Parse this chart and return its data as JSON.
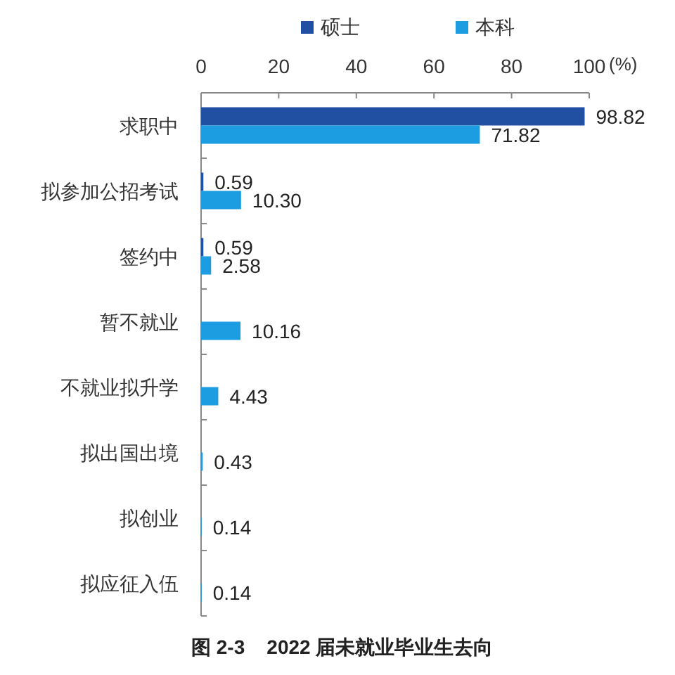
{
  "chart_data": {
    "type": "bar",
    "orientation": "horizontal",
    "title": "图 2-3    2022 届未就业毕业生去向",
    "xlabel": "(%)",
    "categories": [
      "求职中",
      "拟参加公招考试",
      "签约中",
      "暂不就业",
      "不就业拟升学",
      "拟出国出境",
      "拟创业",
      "拟应征入伍"
    ],
    "series": [
      {
        "name": "硕士",
        "color": "#2150a3",
        "values": [
          98.82,
          0.59,
          0.59,
          null,
          null,
          null,
          null,
          null
        ],
        "value_labels": [
          "98.82",
          "0.59",
          "0.59",
          null,
          null,
          null,
          null,
          null
        ]
      },
      {
        "name": "本科",
        "color": "#1c9de2",
        "values": [
          71.82,
          10.3,
          2.58,
          10.16,
          4.43,
          0.43,
          0.14,
          0.14
        ],
        "value_labels": [
          "71.82",
          "10.30",
          "2.58",
          "10.16",
          "4.43",
          "0.43",
          "0.14",
          "0.14"
        ]
      }
    ],
    "xlim": [
      0,
      100
    ],
    "xticks": [
      0,
      20,
      40,
      60,
      80,
      100
    ],
    "legend": "top"
  }
}
